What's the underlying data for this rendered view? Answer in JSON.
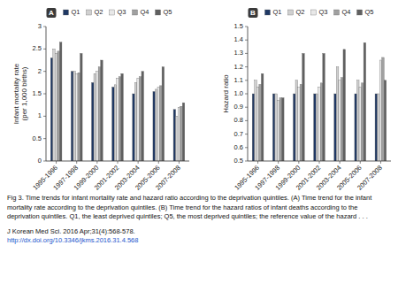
{
  "chart_data": [
    {
      "type": "bar",
      "categories": [
        "1995-1996",
        "1997-1998",
        "1999-2000",
        "2001-2002",
        "2003-2004",
        "2005-2006",
        "2007-2008"
      ],
      "series": [
        {
          "name": "Q1",
          "color": "#1F3864",
          "values": [
            2.3,
            2.0,
            1.75,
            1.65,
            1.5,
            1.55,
            1.15
          ]
        },
        {
          "name": "Q2",
          "color": "#D0D0D0",
          "values": [
            2.5,
            2.0,
            1.95,
            1.7,
            1.75,
            1.6,
            1.0
          ]
        },
        {
          "name": "Q3",
          "color": "#E8E8E8",
          "values": [
            2.4,
            1.95,
            2.0,
            1.85,
            1.85,
            1.65,
            1.2
          ]
        },
        {
          "name": "Q4",
          "color": "#A0A0A0",
          "values": [
            2.45,
            1.97,
            2.1,
            1.88,
            1.88,
            1.68,
            1.22
          ]
        },
        {
          "name": "Q5",
          "color": "#606060",
          "values": [
            2.65,
            2.4,
            2.25,
            1.95,
            2.0,
            2.1,
            1.3
          ]
        }
      ],
      "y_label": "Infant mortality rate\n(per 1,000 births)",
      "ylim": [
        0,
        3.0
      ],
      "yticks": [
        0,
        0.5,
        1,
        1.5,
        2,
        2.5,
        3
      ],
      "annotations": [
        "A"
      ],
      "legend": "top",
      "grid": false
    },
    {
      "type": "bar",
      "categories": [
        "1995-1996",
        "1997-1998",
        "1999-2000",
        "2001-2002",
        "2003-2004",
        "2005-2006",
        "2007-2008"
      ],
      "series": [
        {
          "name": "Q1",
          "color": "#1F3864",
          "values": [
            1.0,
            1.0,
            1.0,
            1.0,
            1.0,
            1.0,
            1.0
          ]
        },
        {
          "name": "Q2",
          "color": "#D0D0D0",
          "values": [
            1.1,
            1.0,
            1.1,
            1.0,
            1.2,
            1.1,
            1.0
          ]
        },
        {
          "name": "Q3",
          "color": "#E8E8E8",
          "values": [
            1.05,
            0.95,
            1.05,
            1.05,
            1.1,
            1.05,
            1.25
          ]
        },
        {
          "name": "Q4",
          "color": "#A0A0A0",
          "values": [
            1.07,
            0.97,
            1.07,
            1.08,
            1.12,
            1.08,
            1.27
          ]
        },
        {
          "name": "Q5",
          "color": "#606060",
          "values": [
            1.15,
            0.97,
            1.3,
            1.3,
            1.33,
            1.38,
            1.1
          ]
        }
      ],
      "y_label": "Hazard ratio",
      "ylim": [
        0.5,
        1.5
      ],
      "yticks": [
        0.5,
        0.6,
        0.7,
        0.8,
        0.9,
        {
          "value": 1.0,
          "label": "1.0"
        },
        1.1,
        1.2,
        1.3,
        1.4,
        1.5
      ],
      "annotations": [
        "B"
      ],
      "legend": "top",
      "grid": false
    }
  ],
  "annotations": [
    {
      "text": "Fig 3. Time trends for infant mortality rate and hazard ratio according to the deprivation quintiles. (A) Time trend for the infant"
    },
    {
      "text": "mortality rate according to the deprivation quintiles. (B) Time trend for the hazard ratios of infant deaths according to the"
    },
    {
      "text": "deprivation quintiles. Q1, the least deprived quintiles; Q5, the most deprived quintiles; the reference value of the hazard . . ."
    },
    {
      "text": "J Korean Med Sci. 2016 Apr;31(4):568-578."
    },
    {
      "text": "http://dx.doi.org/10.3346/jkms.2016.31.4.568",
      "color": "#2255CC"
    }
  ]
}
